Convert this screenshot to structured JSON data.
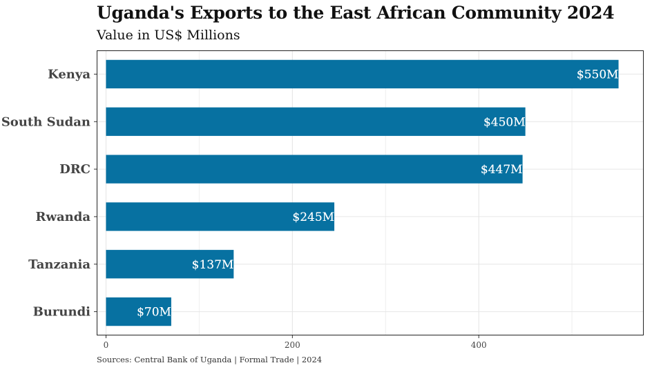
{
  "chart_data": {
    "type": "bar",
    "orientation": "horizontal",
    "title": "Uganda's Exports to the East African Community 2024",
    "subtitle": "Value in US$ Millions",
    "caption": "Sources: Central Bank of Uganda | Formal Trade | 2024",
    "xlabel": "",
    "ylabel": "",
    "categories": [
      "Kenya",
      "South Sudan",
      "DRC",
      "Rwanda",
      "Tanzania",
      "Burundi"
    ],
    "values": [
      550,
      450,
      447,
      245,
      137,
      70
    ],
    "data_labels": [
      "$550M",
      "$450M",
      "$447M",
      "$245M",
      "$137M",
      "$70M"
    ],
    "xlim": [
      -10,
      577
    ],
    "x_ticks": [
      0,
      200,
      400
    ],
    "x_tick_labels": [
      "0",
      "200",
      "400"
    ],
    "grid": true,
    "bar_color": "#0771a1",
    "label_outline_color": "#0771a1",
    "legend": "none"
  }
}
